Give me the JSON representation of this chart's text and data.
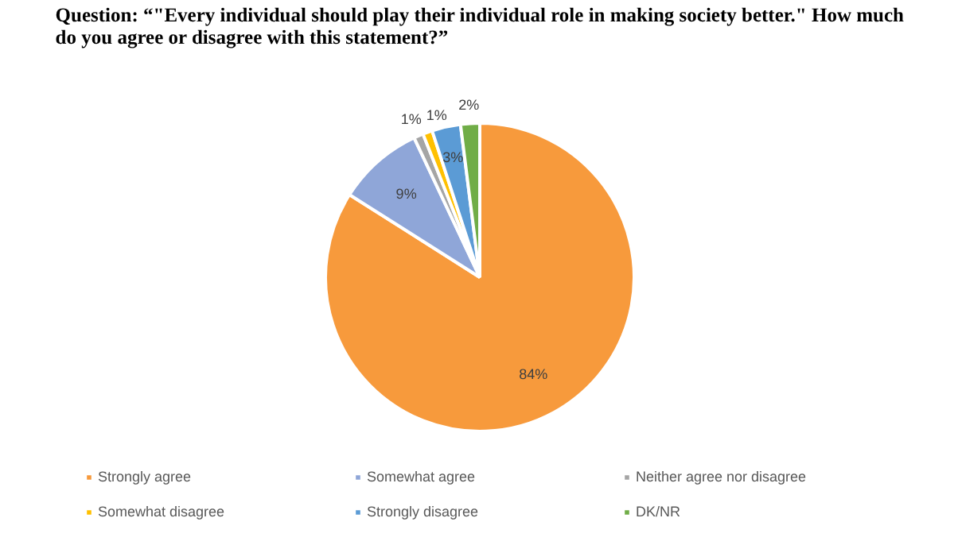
{
  "chart_data": {
    "type": "pie",
    "title": "Question: “\"Every individual should play their individual role in making society better.\" How much do you agree or disagree with this statement?”",
    "categories": [
      "Strongly agree",
      "Somewhat agree",
      "Neither agree nor disagree",
      "Somewhat disagree",
      "Strongly disagree",
      "DK/NR"
    ],
    "values": [
      84,
      9,
      1,
      1,
      3,
      2
    ],
    "colors": [
      "#f79a3c",
      "#8fa6d8",
      "#a5a5a5",
      "#ffc000",
      "#5b9bd5",
      "#70ad47"
    ],
    "value_labels": [
      "84%",
      "9%",
      "1%",
      "1%",
      "3%",
      "2%"
    ],
    "legend": "bottom"
  }
}
